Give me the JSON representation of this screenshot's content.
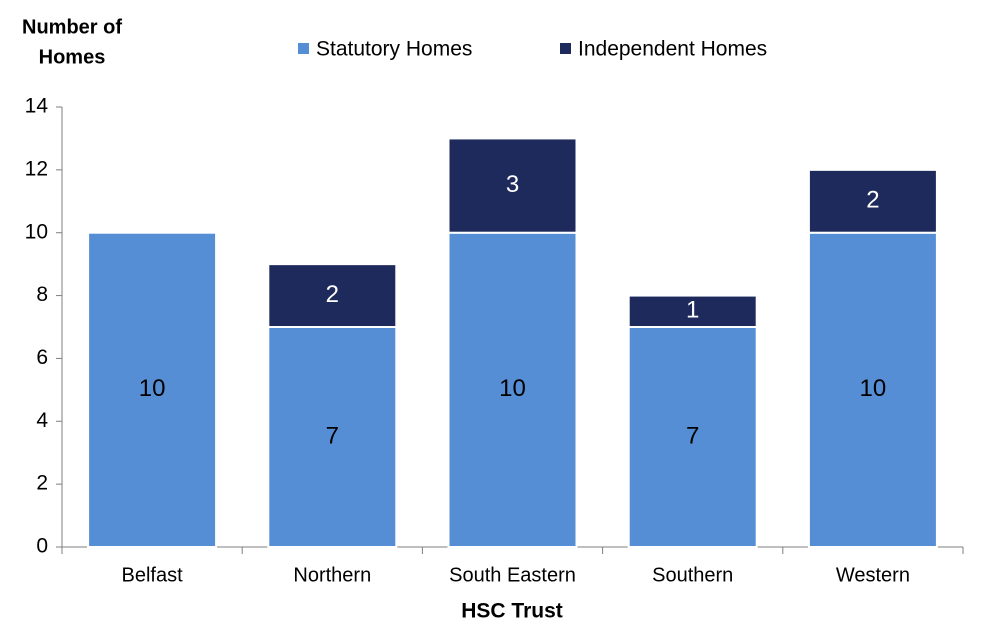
{
  "chart_data": {
    "type": "stacked-bar",
    "ylabel": [
      "Number of",
      "Homes"
    ],
    "xlabel": "HSC Trust",
    "categories": [
      "Belfast",
      "Northern",
      "South Eastern",
      "Southern",
      "Western"
    ],
    "series": [
      {
        "name": "Statutory Homes",
        "color": "#558ed5",
        "label_color": "#000000",
        "values": [
          10,
          7,
          10,
          7,
          10
        ]
      },
      {
        "name": "Independent Homes",
        "color": "#1f2a5c",
        "label_color": "#ffffff",
        "values": [
          null,
          2,
          3,
          1,
          2
        ]
      }
    ],
    "ylim": [
      0,
      14
    ],
    "yticks": [
      0,
      2,
      4,
      6,
      8,
      10,
      12,
      14
    ],
    "grid": false,
    "legend": "top"
  }
}
